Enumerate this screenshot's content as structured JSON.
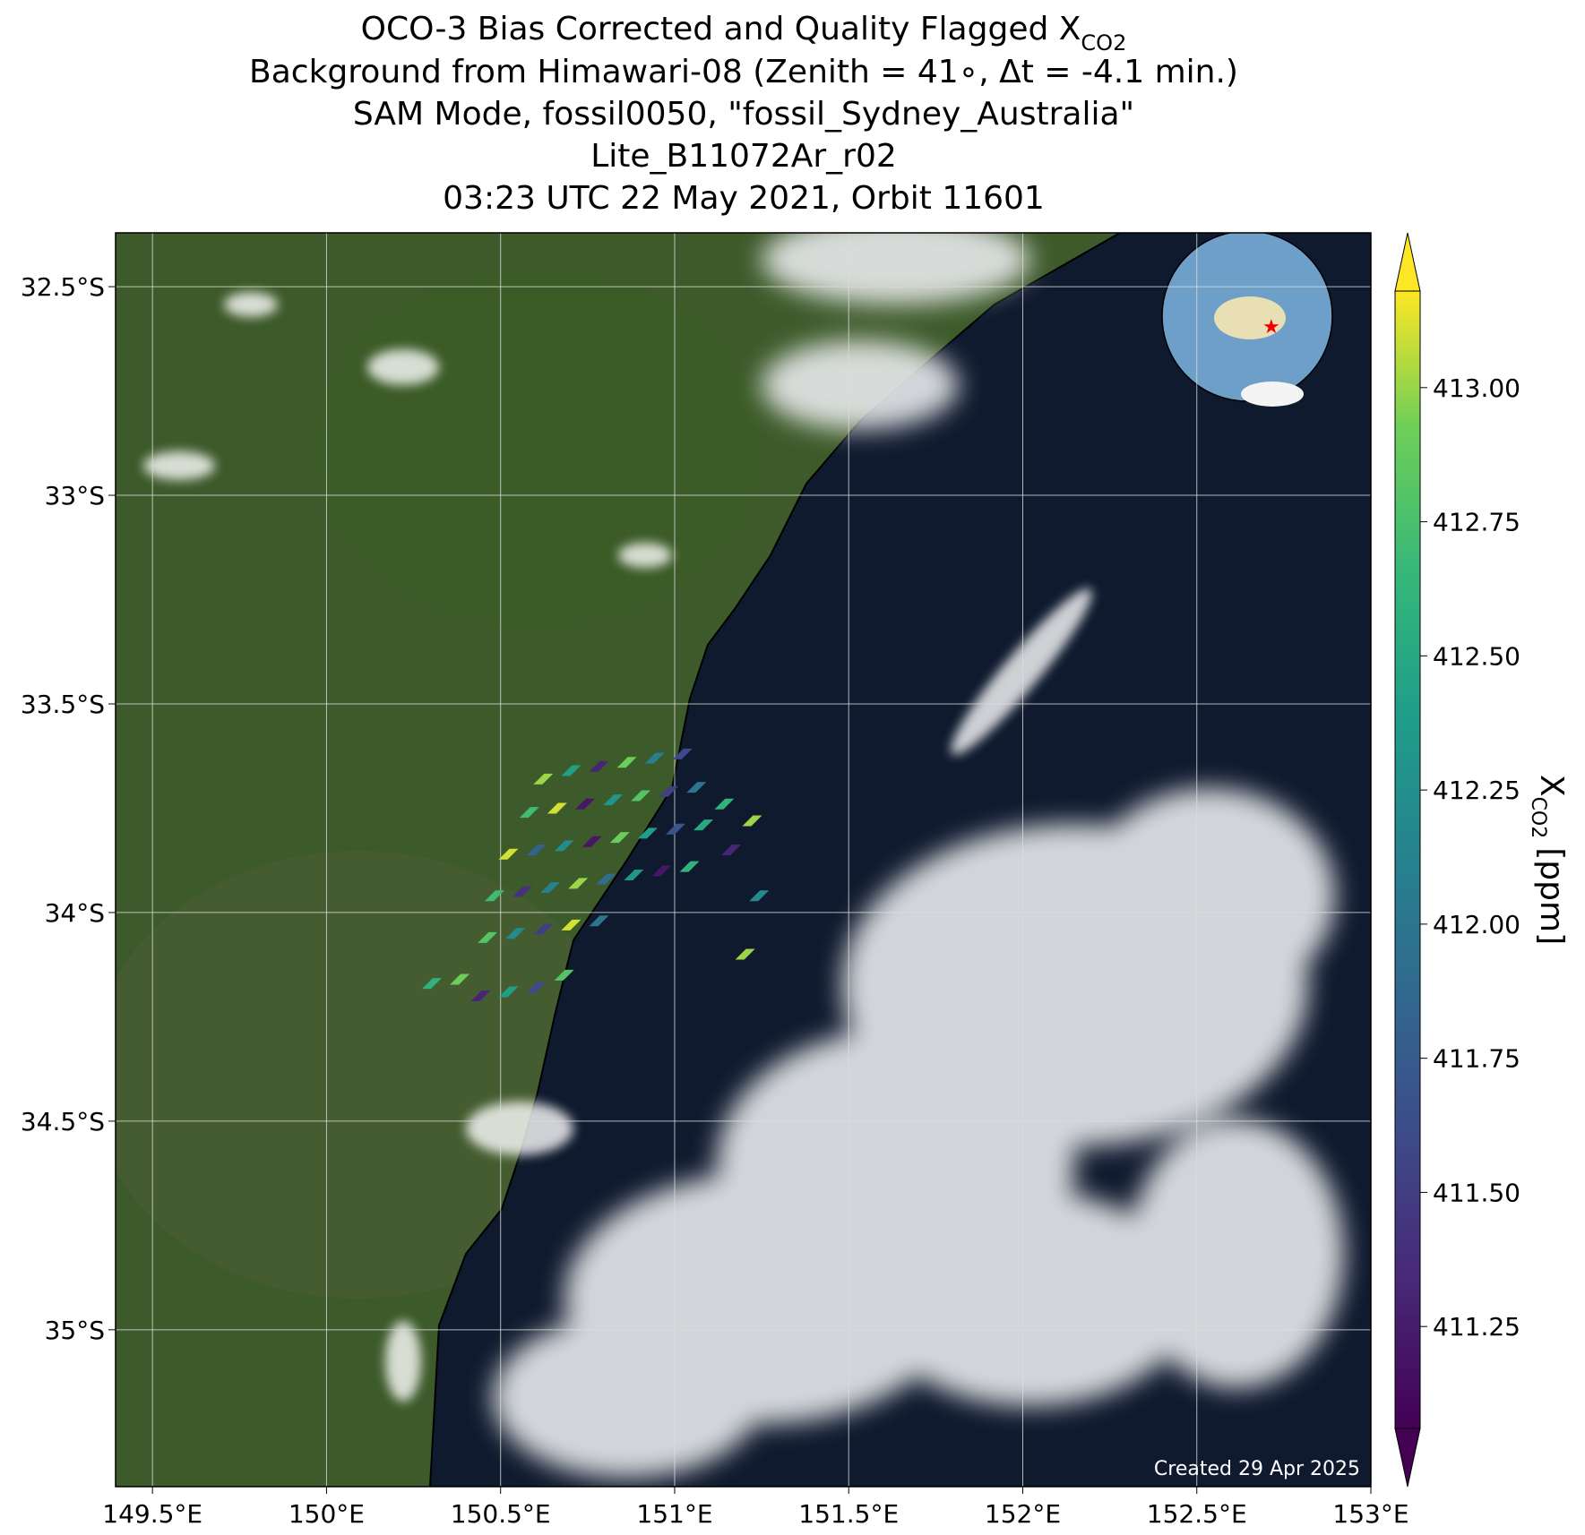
{
  "chart_data": {
    "type": "scatter",
    "title_line1": {
      "text": "OCO-3 Bias Corrected and Quality Flagged X",
      "subscript": "CO2"
    },
    "title_lines": [
      "Background from Himawari-08 (Zenith = 41∘, Δt = -4.1 min.)",
      "SAM Mode, fossil0050, \"fossil_Sydney_Australia\"",
      "Lite_B11072Ar_r02",
      "03:23 UTC 22 May 2021, Orbit 11601"
    ],
    "annotation": "Created 29 Apr 2025",
    "xlim": [
      149.394,
      153.0
    ],
    "ylim": [
      -35.376,
      -32.371
    ],
    "xticks": [
      {
        "value": 149.5,
        "label": "149.5°E"
      },
      {
        "value": 150,
        "label": "150°E"
      },
      {
        "value": 150.5,
        "label": "150.5°E"
      },
      {
        "value": 151,
        "label": "151°E"
      },
      {
        "value": 151.5,
        "label": "151.5°E"
      },
      {
        "value": 152,
        "label": "152°E"
      },
      {
        "value": 152.5,
        "label": "152.5°E"
      },
      {
        "value": 153,
        "label": "153°E"
      }
    ],
    "yticks": [
      {
        "value": -32.5,
        "label": "32.5°S"
      },
      {
        "value": -33,
        "label": "33°S"
      },
      {
        "value": -33.5,
        "label": "33.5°S"
      },
      {
        "value": -34,
        "label": "34°S"
      },
      {
        "value": -34.5,
        "label": "34.5°S"
      },
      {
        "value": -35,
        "label": "35°S"
      }
    ],
    "grid": true,
    "colorbar": {
      "colormap": "viridis",
      "clim": [
        411.06,
        413.18
      ],
      "ticks": [
        {
          "value": 413,
          "label": "413.00"
        },
        {
          "value": 412.75,
          "label": "412.75"
        },
        {
          "value": 412.5,
          "label": "412.50"
        },
        {
          "value": 412.25,
          "label": "412.25"
        },
        {
          "value": 412,
          "label": "412.00"
        },
        {
          "value": 411.75,
          "label": "411.75"
        },
        {
          "value": 411.5,
          "label": "411.50"
        },
        {
          "value": 411.25,
          "label": "411.25"
        }
      ],
      "label": {
        "text": "X",
        "subscript": "CO2",
        "unit": "[ppm]"
      }
    },
    "soundings": {
      "lon": [
        150.62,
        150.7,
        150.78,
        150.86,
        150.94,
        151.02,
        150.58,
        150.66,
        150.74,
        150.82,
        150.9,
        150.98,
        151.06,
        151.14,
        151.22,
        150.52,
        150.6,
        150.68,
        150.76,
        150.84,
        150.92,
        151.0,
        151.08,
        151.16,
        150.48,
        150.56,
        150.64,
        150.72,
        150.8,
        150.88,
        150.96,
        151.04,
        150.46,
        150.54,
        150.62,
        150.7,
        150.78,
        150.3,
        150.38,
        150.44,
        150.52,
        150.6,
        150.68,
        151.24,
        151.2
      ],
      "lat": [
        -33.68,
        -33.66,
        -33.65,
        -33.64,
        -33.63,
        -33.62,
        -33.76,
        -33.75,
        -33.74,
        -33.73,
        -33.72,
        -33.71,
        -33.7,
        -33.74,
        -33.78,
        -33.86,
        -33.85,
        -33.84,
        -33.83,
        -33.82,
        -33.81,
        -33.8,
        -33.79,
        -33.85,
        -33.96,
        -33.95,
        -33.94,
        -33.93,
        -33.92,
        -33.91,
        -33.9,
        -33.89,
        -34.06,
        -34.05,
        -34.04,
        -34.03,
        -34.02,
        -34.17,
        -34.16,
        -34.2,
        -34.19,
        -34.18,
        -34.15,
        -33.96,
        -34.1
      ],
      "values": [
        413.0,
        412.4,
        411.3,
        412.9,
        412.1,
        411.6,
        412.7,
        413.1,
        411.2,
        412.3,
        412.8,
        411.5,
        412.0,
        412.6,
        413.0,
        413.1,
        411.8,
        412.2,
        411.2,
        412.9,
        412.4,
        411.7,
        412.5,
        411.3,
        412.7,
        411.4,
        412.1,
        413.0,
        411.9,
        412.3,
        411.2,
        412.6,
        412.8,
        412.2,
        411.5,
        413.1,
        412.0,
        412.6,
        412.9,
        411.3,
        412.4,
        411.6,
        412.8,
        412.2,
        413.0
      ]
    }
  }
}
